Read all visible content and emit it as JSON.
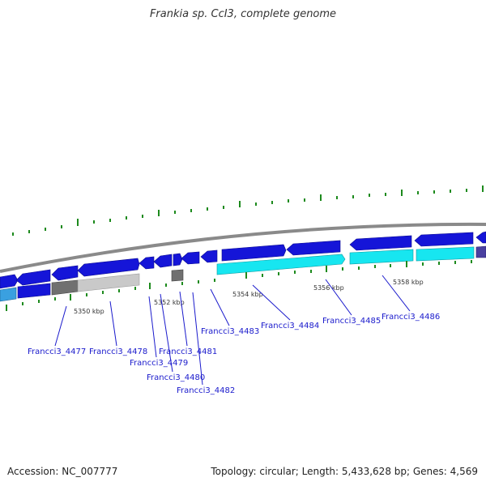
{
  "title": "Frankia sp. CcI3, complete genome",
  "footer": {
    "accession": "Accession: NC_007777",
    "summary": "Topology: circular; Length: 5,433,628 bp; Genes: 4,569"
  },
  "colors": {
    "cds_dark_blue": "#1515d8",
    "cds_light_blue": "#3aa0e0",
    "cyan_block": "#17e6f0",
    "gray_block": "#c9c9c9",
    "dark_gray_block": "#707070",
    "backbone": "#8a8a8a",
    "tick_green": "#1d8a1d",
    "label_blue": "#1a1acc"
  },
  "scale_labels": [
    "5350 kbp",
    "5352 kbp",
    "5354 kbp",
    "5356 kbp",
    "5358 kbp"
  ],
  "gene_labels": [
    "Francci3_4477",
    "Francci3_4478",
    "Francci3_4479",
    "Francci3_4480",
    "Francci3_4481",
    "Francci3_4482",
    "Francci3_4483",
    "Francci3_4484",
    "Francci3_4485",
    "Francci3_4486"
  ]
}
